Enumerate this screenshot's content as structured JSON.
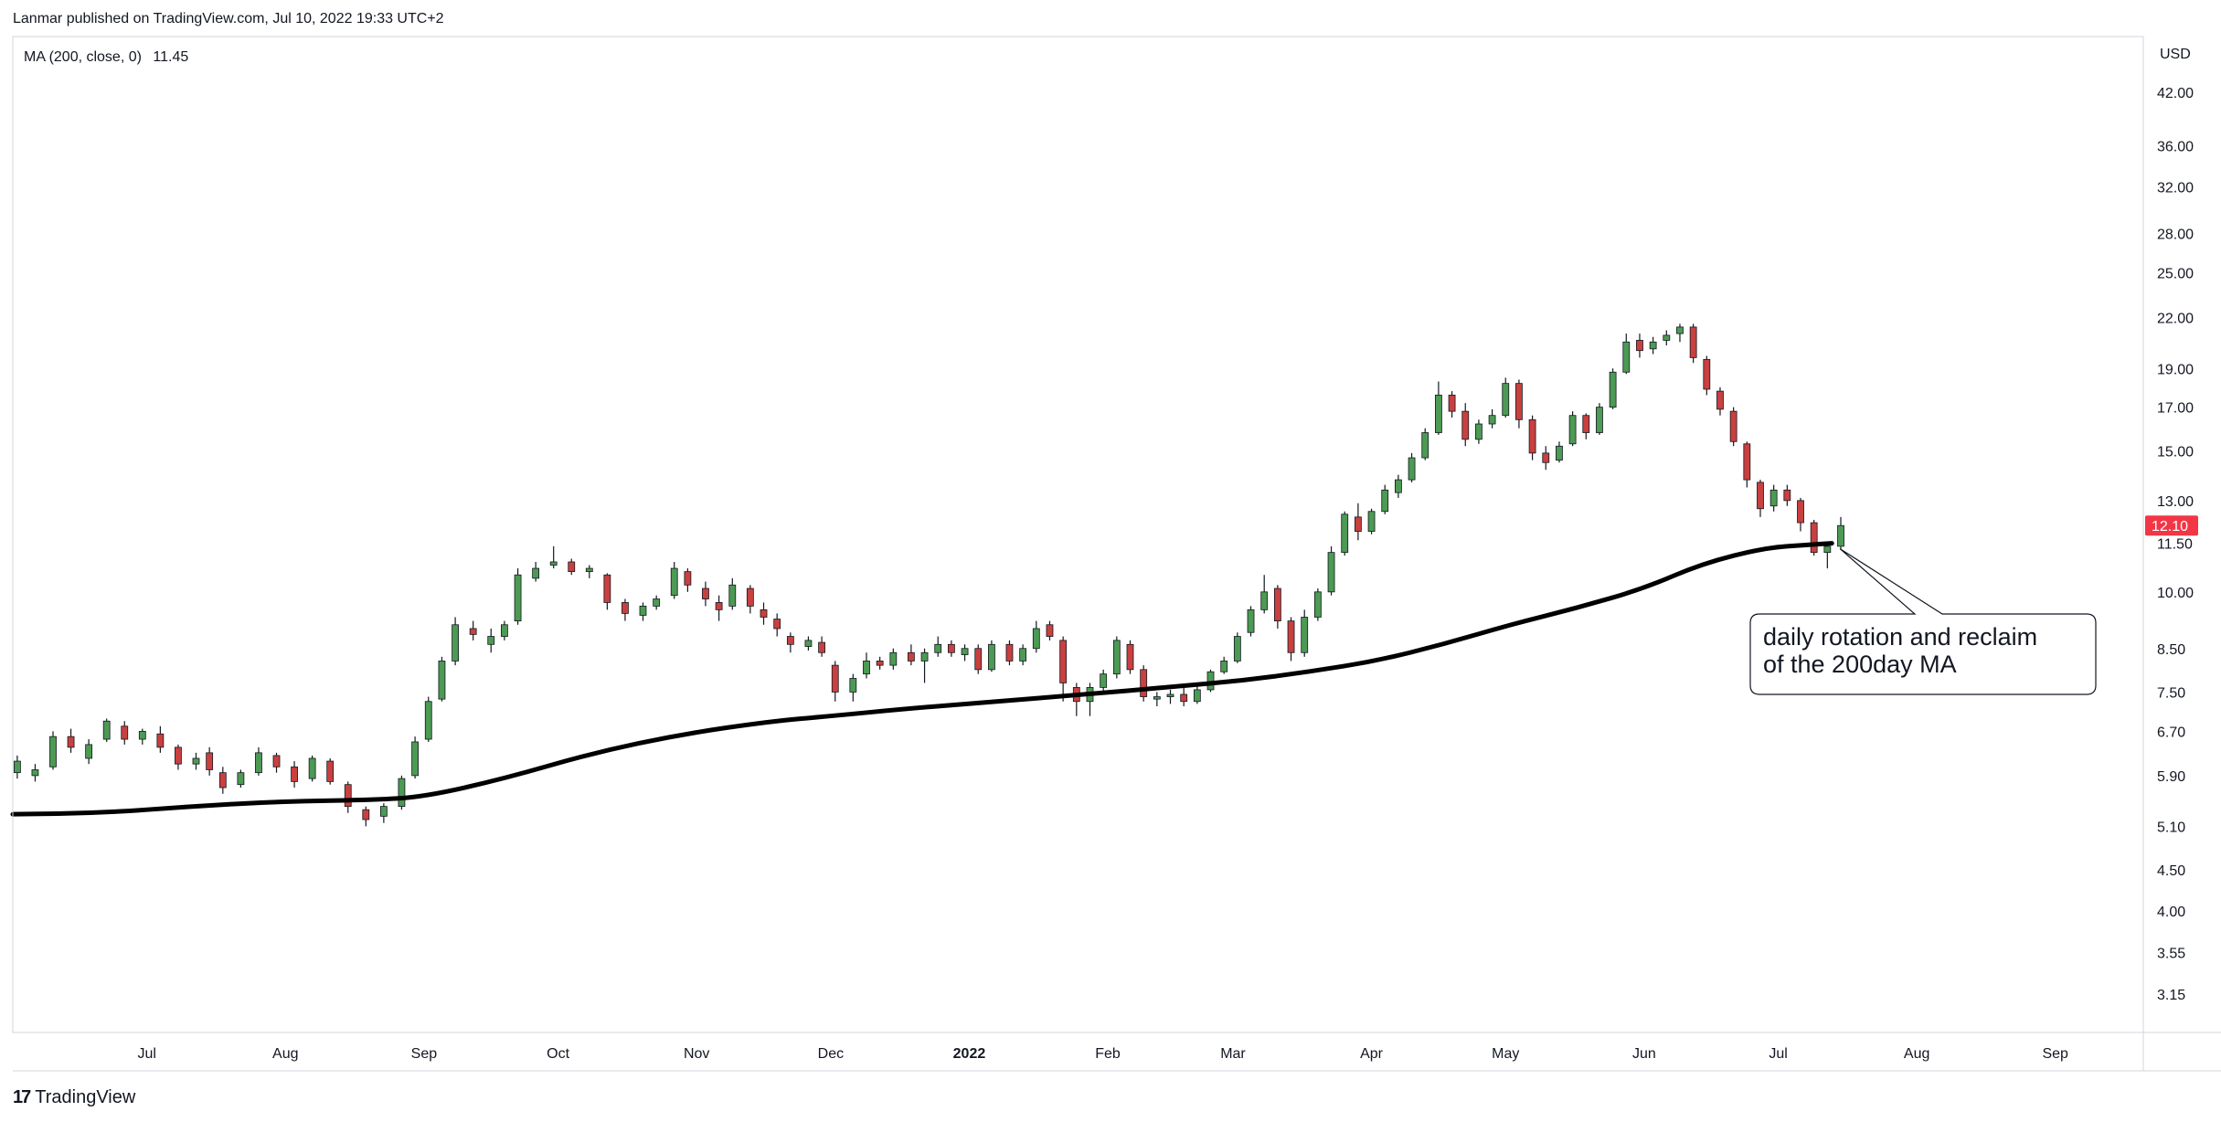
{
  "header": {
    "published_text": "Lanmar published on TradingView.com, Jul 10, 2022 19:33 UTC+2"
  },
  "legend": {
    "indicator_label": "MA (200, close, 0)",
    "indicator_value": "11.45"
  },
  "footer": {
    "logo_mark": "17",
    "logo_text": "TradingView"
  },
  "colors": {
    "up": "#4c9a53",
    "down": "#c8403f",
    "ma_line": "#000000",
    "price_badge": "#f23645",
    "axis_text": "#131722",
    "grid": "#e0e3eb"
  },
  "chart_data": {
    "type": "candlestick",
    "currency_label": "USD",
    "scale": "log",
    "ylim": [
      2.8,
      50
    ],
    "y_ticks": [
      "42.00",
      "36.00",
      "32.00",
      "28.00",
      "25.00",
      "22.00",
      "19.00",
      "17.00",
      "15.00",
      "13.00",
      "11.50",
      "10.00",
      "8.50",
      "7.50",
      "6.70",
      "5.90",
      "5.10",
      "4.50",
      "4.00",
      "3.55",
      "3.15"
    ],
    "x_ticks": [
      "Jul",
      "Aug",
      "Sep",
      "Oct",
      "Nov",
      "Dec",
      "2022",
      "Feb",
      "Mar",
      "Apr",
      "May",
      "Jun",
      "Jul",
      "Aug",
      "Sep"
    ],
    "x_tick_days": [
      30,
      61,
      92,
      122,
      153,
      183,
      214,
      245,
      273,
      304,
      334,
      365,
      395,
      426,
      457
    ],
    "last_price": "12.10",
    "last_price_value": 12.1,
    "annotation": {
      "lines": [
        "daily rotation and reclaim",
        "of the 200day MA"
      ],
      "target_day": 408,
      "target_price": 11.5
    },
    "ma200": {
      "name": "MA (200, close, 0)",
      "points": [
        [
          0,
          5.28
        ],
        [
          20,
          5.3
        ],
        [
          40,
          5.4
        ],
        [
          60,
          5.48
        ],
        [
          80,
          5.5
        ],
        [
          92,
          5.55
        ],
        [
          110,
          5.85
        ],
        [
          130,
          6.3
        ],
        [
          150,
          6.65
        ],
        [
          170,
          6.9
        ],
        [
          183,
          7.0
        ],
        [
          200,
          7.15
        ],
        [
          220,
          7.3
        ],
        [
          240,
          7.45
        ],
        [
          260,
          7.62
        ],
        [
          275,
          7.75
        ],
        [
          290,
          7.95
        ],
        [
          305,
          8.2
        ],
        [
          320,
          8.6
        ],
        [
          335,
          9.1
        ],
        [
          350,
          9.55
        ],
        [
          365,
          10.1
        ],
        [
          378,
          10.85
        ],
        [
          392,
          11.35
        ],
        [
          402,
          11.45
        ],
        [
          407,
          11.5
        ]
      ]
    },
    "ohlc": [
      [
        1,
        5.95,
        6.25,
        5.85,
        6.15
      ],
      [
        5,
        5.9,
        6.1,
        5.8,
        6.0
      ],
      [
        9,
        6.05,
        6.7,
        6.0,
        6.6
      ],
      [
        13,
        6.6,
        6.75,
        6.3,
        6.4
      ],
      [
        17,
        6.2,
        6.55,
        6.1,
        6.45
      ],
      [
        21,
        6.55,
        6.95,
        6.5,
        6.9
      ],
      [
        25,
        6.8,
        6.9,
        6.45,
        6.55
      ],
      [
        29,
        6.55,
        6.75,
        6.45,
        6.7
      ],
      [
        33,
        6.65,
        6.8,
        6.3,
        6.4
      ],
      [
        37,
        6.4,
        6.45,
        6.0,
        6.1
      ],
      [
        41,
        6.1,
        6.3,
        6.0,
        6.2
      ],
      [
        44,
        6.3,
        6.4,
        5.9,
        6.0
      ],
      [
        47,
        5.95,
        6.05,
        5.6,
        5.7
      ],
      [
        51,
        5.75,
        6.0,
        5.7,
        5.95
      ],
      [
        55,
        5.95,
        6.4,
        5.9,
        6.3
      ],
      [
        59,
        6.25,
        6.3,
        5.95,
        6.05
      ],
      [
        63,
        6.05,
        6.15,
        5.7,
        5.8
      ],
      [
        67,
        5.85,
        6.25,
        5.8,
        6.2
      ],
      [
        71,
        6.15,
        6.2,
        5.75,
        5.8
      ],
      [
        75,
        5.75,
        5.8,
        5.3,
        5.4
      ],
      [
        79,
        5.35,
        5.4,
        5.1,
        5.2
      ],
      [
        83,
        5.25,
        5.45,
        5.15,
        5.4
      ],
      [
        87,
        5.4,
        5.9,
        5.35,
        5.85
      ],
      [
        90,
        5.9,
        6.6,
        5.85,
        6.5
      ],
      [
        93,
        6.55,
        7.4,
        6.5,
        7.3
      ],
      [
        96,
        7.35,
        8.3,
        7.3,
        8.2
      ],
      [
        99,
        8.2,
        9.3,
        8.1,
        9.1
      ],
      [
        103,
        9.0,
        9.2,
        8.7,
        8.85
      ],
      [
        107,
        8.6,
        9.0,
        8.4,
        8.8
      ],
      [
        110,
        8.8,
        9.2,
        8.7,
        9.1
      ],
      [
        113,
        9.2,
        10.7,
        9.1,
        10.5
      ],
      [
        117,
        10.4,
        10.9,
        10.3,
        10.7
      ],
      [
        121,
        10.8,
        11.4,
        10.7,
        10.9
      ],
      [
        125,
        10.9,
        11.0,
        10.5,
        10.6
      ],
      [
        129,
        10.6,
        10.8,
        10.4,
        10.7
      ],
      [
        133,
        10.5,
        10.55,
        9.5,
        9.7
      ],
      [
        137,
        9.7,
        9.8,
        9.2,
        9.4
      ],
      [
        141,
        9.35,
        9.7,
        9.2,
        9.6
      ],
      [
        144,
        9.6,
        9.9,
        9.5,
        9.8
      ],
      [
        148,
        9.9,
        10.9,
        9.8,
        10.7
      ],
      [
        151,
        10.6,
        10.7,
        10.0,
        10.2
      ],
      [
        155,
        10.1,
        10.3,
        9.6,
        9.8
      ],
      [
        158,
        9.7,
        9.9,
        9.2,
        9.5
      ],
      [
        161,
        9.6,
        10.4,
        9.5,
        10.2
      ],
      [
        165,
        10.1,
        10.2,
        9.4,
        9.6
      ],
      [
        168,
        9.5,
        9.7,
        9.1,
        9.3
      ],
      [
        171,
        9.25,
        9.4,
        8.8,
        9.0
      ],
      [
        174,
        8.8,
        8.9,
        8.4,
        8.6
      ],
      [
        178,
        8.55,
        8.8,
        8.45,
        8.7
      ],
      [
        181,
        8.65,
        8.8,
        8.3,
        8.4
      ],
      [
        184,
        8.1,
        8.2,
        7.3,
        7.5
      ],
      [
        188,
        7.5,
        7.9,
        7.3,
        7.8
      ],
      [
        191,
        7.9,
        8.4,
        7.8,
        8.2
      ],
      [
        194,
        8.2,
        8.3,
        8.0,
        8.1
      ],
      [
        197,
        8.1,
        8.5,
        8.0,
        8.4
      ],
      [
        201,
        8.4,
        8.6,
        8.1,
        8.2
      ],
      [
        204,
        8.2,
        8.5,
        7.7,
        8.4
      ],
      [
        207,
        8.4,
        8.8,
        8.3,
        8.6
      ],
      [
        210,
        8.6,
        8.7,
        8.3,
        8.4
      ],
      [
        213,
        8.35,
        8.6,
        8.2,
        8.5
      ],
      [
        216,
        8.5,
        8.6,
        7.9,
        8.0
      ],
      [
        219,
        8.0,
        8.7,
        7.95,
        8.6
      ],
      [
        223,
        8.6,
        8.7,
        8.1,
        8.2
      ],
      [
        226,
        8.2,
        8.6,
        8.1,
        8.5
      ],
      [
        229,
        8.5,
        9.2,
        8.4,
        9.0
      ],
      [
        232,
        9.1,
        9.2,
        8.7,
        8.8
      ],
      [
        235,
        8.7,
        8.8,
        7.3,
        7.7
      ],
      [
        238,
        7.6,
        7.7,
        7.0,
        7.3
      ],
      [
        241,
        7.3,
        7.7,
        7.0,
        7.6
      ],
      [
        244,
        7.6,
        8.0,
        7.5,
        7.9
      ],
      [
        247,
        7.9,
        8.8,
        7.8,
        8.7
      ],
      [
        250,
        8.6,
        8.7,
        7.9,
        8.0
      ],
      [
        253,
        8.0,
        8.1,
        7.3,
        7.4
      ],
      [
        256,
        7.35,
        7.5,
        7.2,
        7.4
      ],
      [
        259,
        7.4,
        7.55,
        7.25,
        7.45
      ],
      [
        262,
        7.45,
        7.6,
        7.2,
        7.3
      ],
      [
        265,
        7.3,
        7.65,
        7.25,
        7.55
      ],
      [
        268,
        7.55,
        8.0,
        7.5,
        7.95
      ],
      [
        271,
        7.95,
        8.3,
        7.9,
        8.2
      ],
      [
        274,
        8.2,
        8.9,
        8.15,
        8.8
      ],
      [
        277,
        8.9,
        9.6,
        8.8,
        9.5
      ],
      [
        280,
        9.5,
        10.5,
        9.4,
        10.0
      ],
      [
        283,
        10.1,
        10.2,
        9.0,
        9.2
      ],
      [
        286,
        9.2,
        9.3,
        8.2,
        8.4
      ],
      [
        289,
        8.4,
        9.5,
        8.3,
        9.3
      ],
      [
        292,
        9.3,
        10.1,
        9.2,
        10.0
      ],
      [
        295,
        10.0,
        11.4,
        9.9,
        11.2
      ],
      [
        298,
        11.2,
        12.6,
        11.1,
        12.5
      ],
      [
        301,
        12.4,
        12.9,
        11.6,
        11.9
      ],
      [
        304,
        11.9,
        12.7,
        11.8,
        12.6
      ],
      [
        307,
        12.6,
        13.6,
        12.5,
        13.4
      ],
      [
        310,
        13.3,
        14.0,
        13.1,
        13.8
      ],
      [
        313,
        13.8,
        14.9,
        13.7,
        14.7
      ],
      [
        316,
        14.7,
        16.0,
        14.6,
        15.8
      ],
      [
        319,
        15.8,
        18.3,
        15.7,
        17.6
      ],
      [
        322,
        17.6,
        17.8,
        16.5,
        16.8
      ],
      [
        325,
        16.8,
        17.2,
        15.2,
        15.5
      ],
      [
        328,
        15.5,
        16.4,
        15.3,
        16.2
      ],
      [
        331,
        16.2,
        16.9,
        16.0,
        16.6
      ],
      [
        334,
        16.6,
        18.5,
        16.5,
        18.2
      ],
      [
        337,
        18.2,
        18.4,
        16.0,
        16.4
      ],
      [
        340,
        16.4,
        16.6,
        14.6,
        14.9
      ],
      [
        343,
        14.9,
        15.2,
        14.2,
        14.5
      ],
      [
        346,
        14.6,
        15.4,
        14.5,
        15.2
      ],
      [
        349,
        15.3,
        16.8,
        15.2,
        16.6
      ],
      [
        352,
        16.6,
        16.7,
        15.5,
        15.8
      ],
      [
        355,
        15.8,
        17.2,
        15.7,
        17.0
      ],
      [
        358,
        17.0,
        19.0,
        16.9,
        18.8
      ],
      [
        361,
        18.8,
        21.0,
        18.7,
        20.5
      ],
      [
        364,
        20.6,
        21.0,
        19.6,
        20.0
      ],
      [
        367,
        20.1,
        20.8,
        19.8,
        20.5
      ],
      [
        370,
        20.6,
        21.2,
        20.3,
        20.9
      ],
      [
        373,
        21.0,
        21.6,
        20.5,
        21.4
      ],
      [
        376,
        21.4,
        21.6,
        19.3,
        19.6
      ],
      [
        379,
        19.5,
        19.7,
        17.6,
        17.9
      ],
      [
        382,
        17.8,
        18.0,
        16.6,
        16.9
      ],
      [
        385,
        16.8,
        17.0,
        15.2,
        15.4
      ],
      [
        388,
        15.3,
        15.4,
        13.5,
        13.8
      ],
      [
        391,
        13.7,
        13.8,
        12.4,
        12.7
      ],
      [
        394,
        12.8,
        13.6,
        12.6,
        13.4
      ],
      [
        397,
        13.4,
        13.6,
        12.8,
        13.0
      ],
      [
        400,
        13.0,
        13.1,
        11.9,
        12.2
      ],
      [
        403,
        12.2,
        12.3,
        11.1,
        11.2
      ],
      [
        406,
        11.2,
        11.5,
        10.7,
        11.4
      ],
      [
        409,
        11.4,
        12.4,
        11.3,
        12.1
      ]
    ]
  }
}
